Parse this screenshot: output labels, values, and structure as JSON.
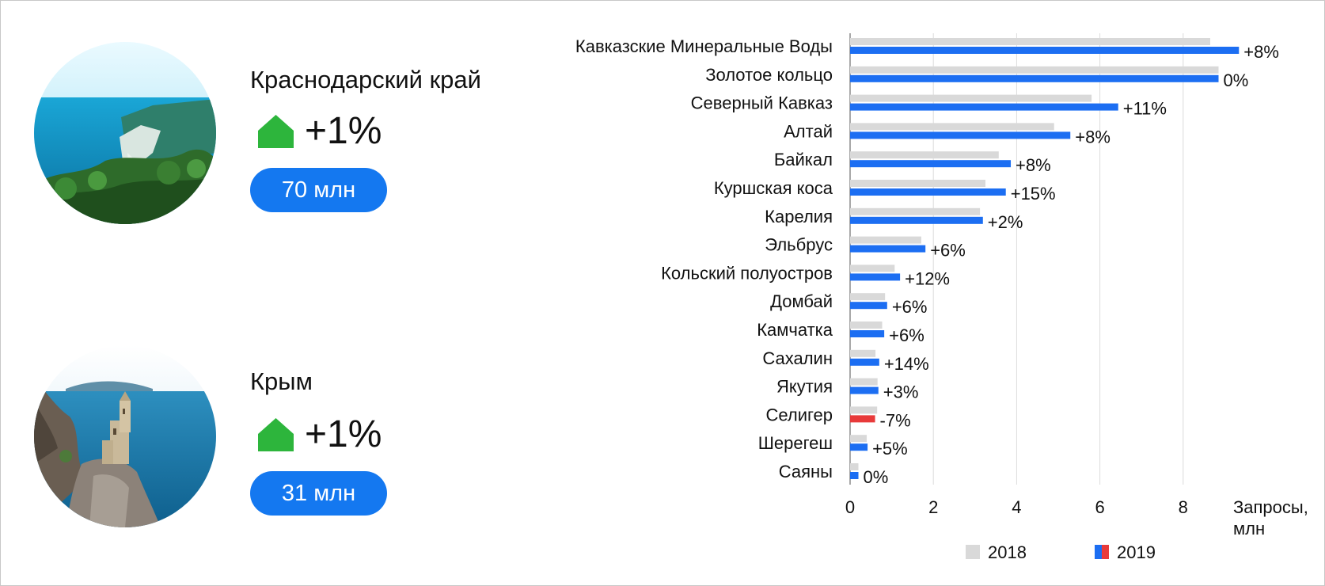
{
  "colors": {
    "accent_blue": "#0a72e8",
    "bar_2018": "#d9d9d9",
    "bar_2019": "#1c6ef2",
    "bar_2019_negative": "#e83a3a",
    "trend_green": "#2db53c",
    "pill_blue": "#1478f0"
  },
  "regions": [
    {
      "name": "Краснодарский край",
      "trend_icon": "up-arrow-icon",
      "change": "+1%",
      "requests": "70 млн",
      "photo": "coastal-landscape"
    },
    {
      "name": "Крым",
      "trend_icon": "up-arrow-icon",
      "change": "+1%",
      "requests": "31 млн",
      "photo": "swallows-nest-castle"
    }
  ],
  "chart_data": {
    "type": "bar",
    "orientation": "horizontal",
    "categories": [
      "Кавказские Минеральные Воды",
      "Золотое кольцо",
      "Северный Кавказ",
      "Алтай",
      "Байкал",
      "Куршская коса",
      "Карелия",
      "Эльбрус",
      "Кольский полуостров",
      "Домбай",
      "Камчатка",
      "Сахалин",
      "Якутия",
      "Селигер",
      "Шерегеш",
      "Саяны"
    ],
    "series": [
      {
        "name": "2018",
        "color": "#d9d9d9",
        "values": [
          8.65,
          8.85,
          5.8,
          4.9,
          3.57,
          3.25,
          3.12,
          1.71,
          1.07,
          0.84,
          0.77,
          0.61,
          0.66,
          0.65,
          0.4,
          0.2
        ]
      },
      {
        "name": "2019",
        "color": "#1c6ef2",
        "values": [
          9.34,
          8.85,
          6.44,
          5.29,
          3.86,
          3.74,
          3.19,
          1.81,
          1.2,
          0.89,
          0.82,
          0.7,
          0.68,
          0.6,
          0.42,
          0.2
        ]
      }
    ],
    "changes": [
      "+8%",
      "0%",
      "+11%",
      "+8%",
      "+8%",
      "+15%",
      "+2%",
      "+6%",
      "+12%",
      "+6%",
      "+6%",
      "+14%",
      "+3%",
      "-7%",
      "+5%",
      "0%"
    ],
    "xlabel": "Запросы,\nмлн",
    "xlim": [
      0,
      10
    ],
    "xticks": [
      0,
      2,
      4,
      6,
      8
    ],
    "grid": true,
    "legend_position": "bottom",
    "legend": [
      "2018",
      "2019"
    ]
  }
}
